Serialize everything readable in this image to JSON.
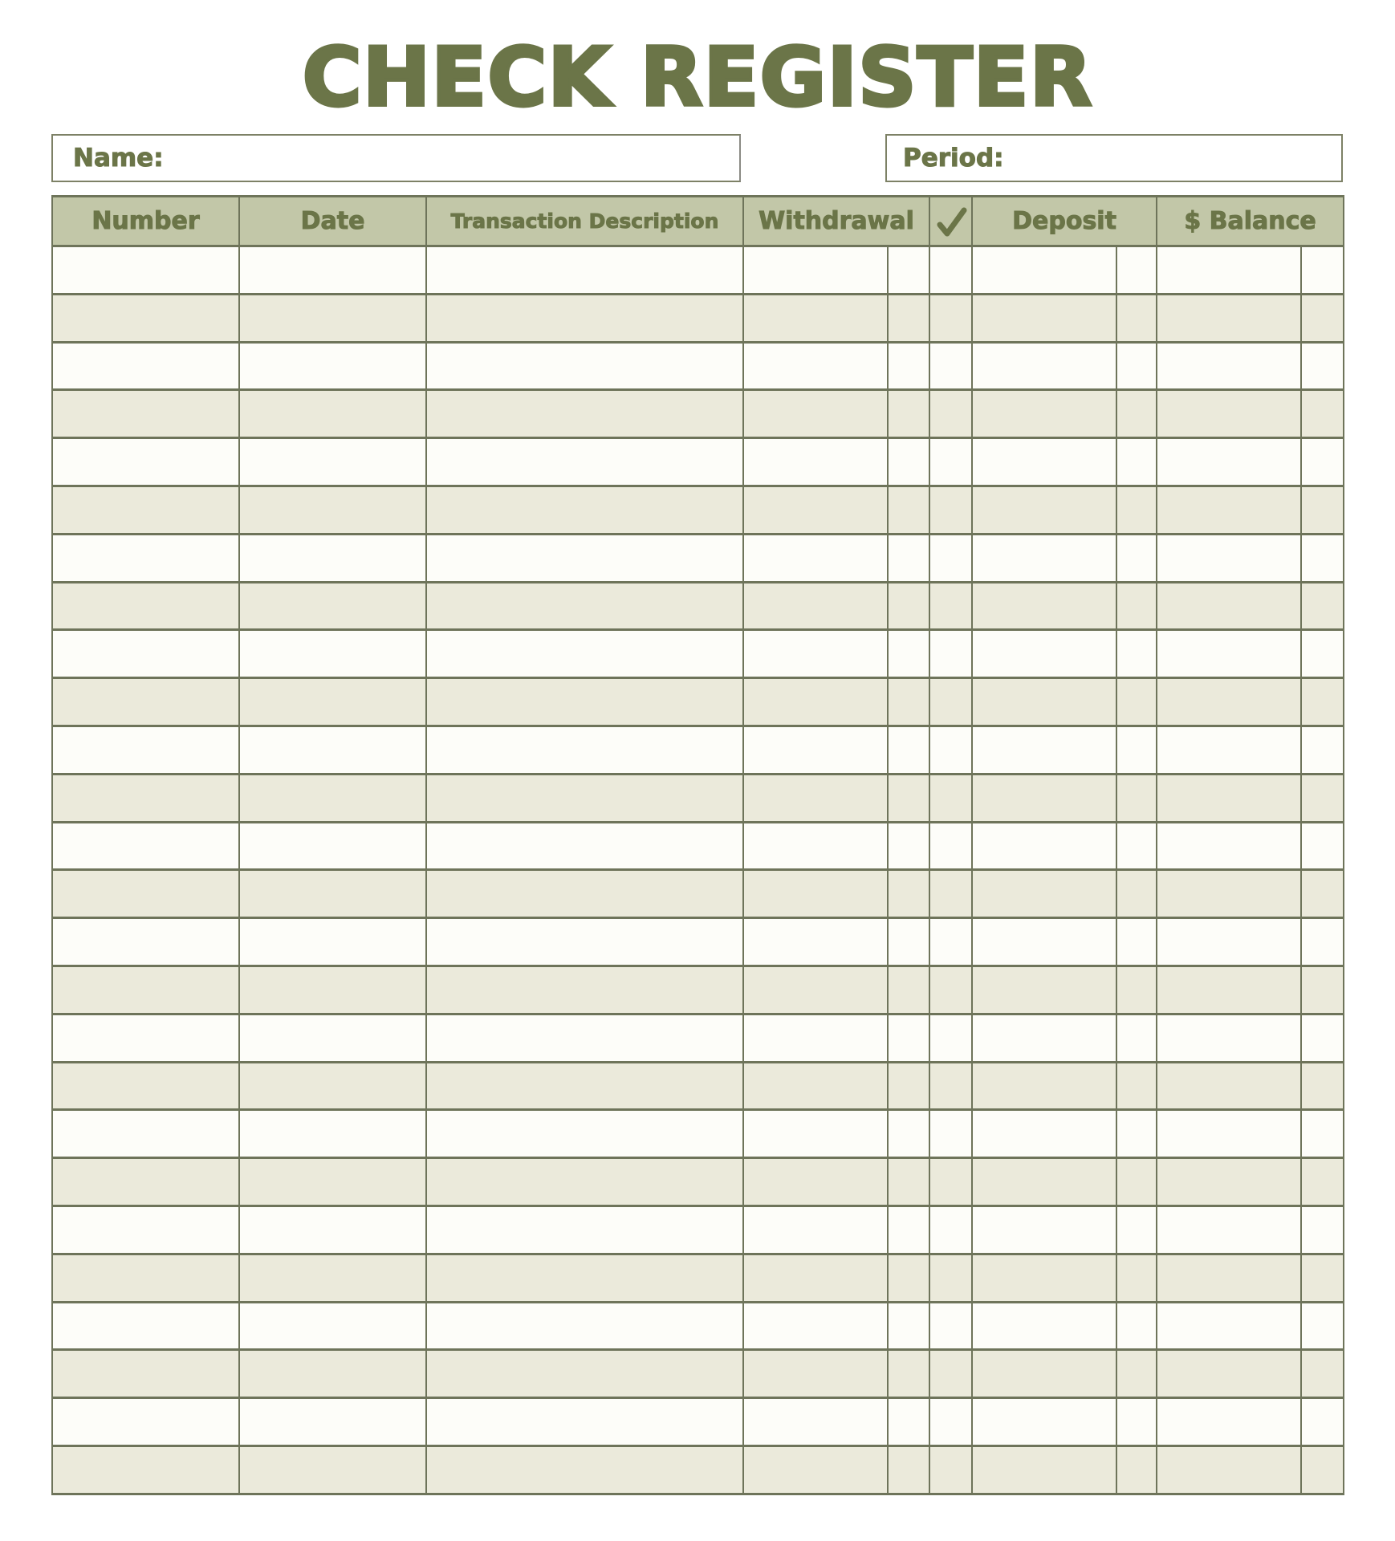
{
  "title": "CHECK REGISTER",
  "fields": {
    "name_label": "Name:",
    "period_label": "Period:"
  },
  "table": {
    "columns": [
      {
        "label": "Number"
      },
      {
        "label": "Date"
      },
      {
        "label": "Transaction Description"
      },
      {
        "label": "Withdrawal"
      },
      {
        "label": "",
        "icon": "check-icon"
      },
      {
        "label": "Deposit"
      },
      {
        "label": "$ Balance"
      }
    ],
    "row_count": 26,
    "rows": []
  },
  "colors": {
    "olive_text": "#6b7548",
    "header_bg": "#c2c7a8",
    "row_white": "#fdfdf9",
    "row_cream": "#ebeadb",
    "grid_line": "#6e745a",
    "box_border": "#7d8166"
  }
}
